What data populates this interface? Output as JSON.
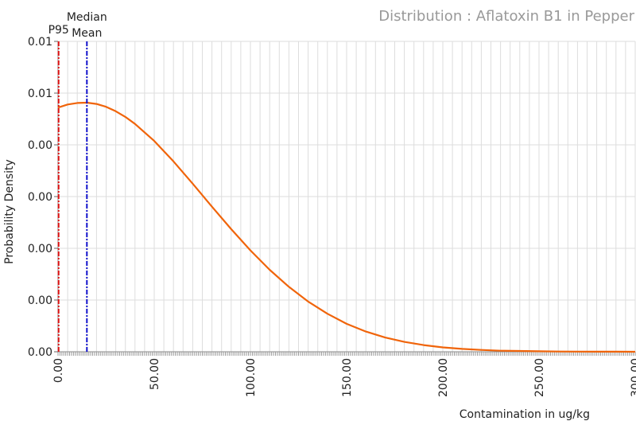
{
  "chart_data": {
    "type": "line",
    "title": "Distribution : Aflatoxin B1 in Pepper",
    "xlabel": "Contamination in ug/kg",
    "ylabel": "Probability Density",
    "xlim": [
      0,
      300
    ],
    "ylim": [
      0,
      0.012
    ],
    "x_ticks": [
      "0.00",
      "50.00",
      "100.00",
      "150.00",
      "200.00",
      "250.00",
      "300.00"
    ],
    "x_tick_values": [
      0,
      50,
      100,
      150,
      200,
      250,
      300
    ],
    "y_ticks": [
      "0.00",
      "0.00",
      "0.00",
      "0.00",
      "0.00",
      "0.01",
      "0.01"
    ],
    "y_tick_values": [
      0,
      0.002,
      0.004,
      0.006,
      0.008,
      0.01,
      0.012
    ],
    "grid": true,
    "series": [
      {
        "color": "#f0640a",
        "x": [
          0,
          5,
          10,
          15,
          20,
          25,
          30,
          35,
          40,
          50,
          60,
          70,
          80,
          90,
          100,
          110,
          120,
          130,
          140,
          150,
          160,
          170,
          180,
          190,
          200,
          210,
          220,
          230,
          240,
          250,
          260,
          270,
          280,
          290,
          300
        ],
        "y": [
          0.00944,
          0.00956,
          0.00962,
          0.00963,
          0.00958,
          0.00947,
          0.0093,
          0.00908,
          0.00881,
          0.00815,
          0.00736,
          0.0065,
          0.00561,
          0.00474,
          0.00392,
          0.00317,
          0.00251,
          0.00194,
          0.00147,
          0.00108,
          0.00078,
          0.00055,
          0.00038,
          0.00026,
          0.00017,
          0.00011,
          7e-05,
          4e-05,
          3e-05,
          2e-05,
          1e-05,
          6e-06,
          4e-06,
          2e-06,
          1e-06
        ]
      }
    ],
    "markers": [
      {
        "label": "P95",
        "x": 0.3,
        "color": "#dd1111"
      },
      {
        "label": "Median",
        "x": 15,
        "color": "#1111cc"
      },
      {
        "label": "Mean",
        "x": 15,
        "color": "#1111cc"
      }
    ],
    "colors": {
      "grid": "#dddddd",
      "axis": "#888888",
      "title": "#999999"
    }
  }
}
